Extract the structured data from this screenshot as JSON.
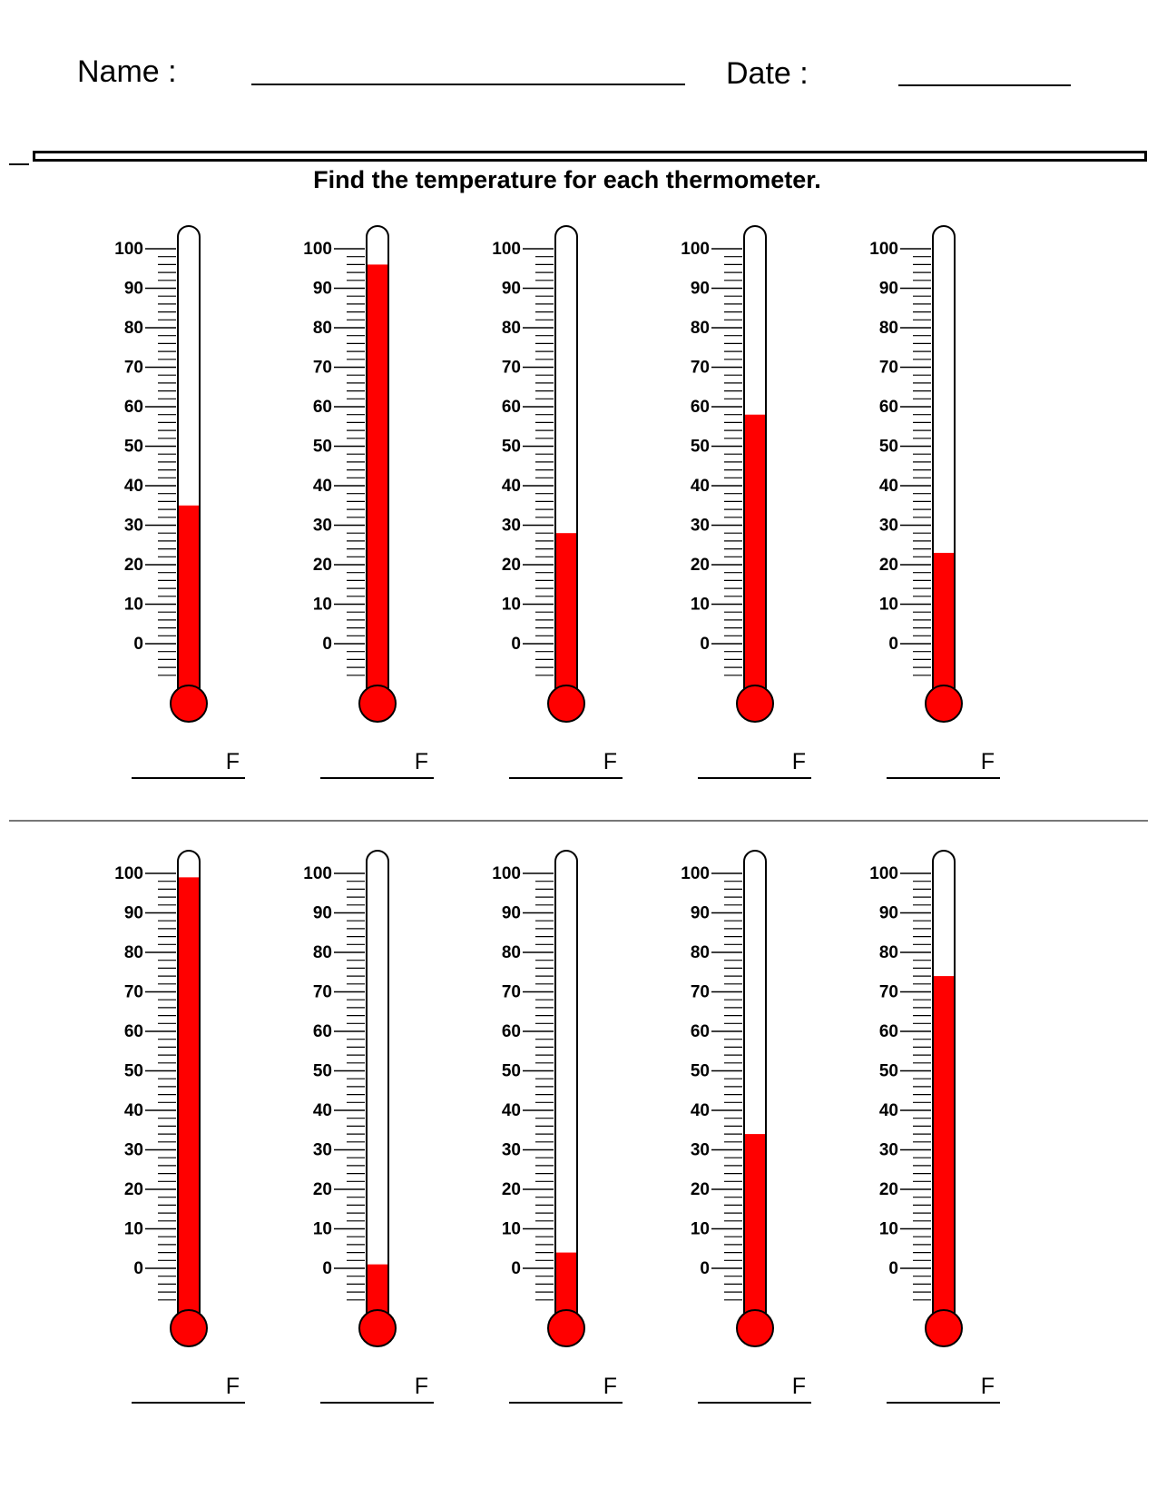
{
  "header": {
    "name_label": "Name :",
    "date_label": "Date :"
  },
  "instructions": "Find the temperature for each thermometer.",
  "scale": {
    "min": 0,
    "max": 100,
    "major_step": 10,
    "minor_step": 2,
    "extends_below_zero": 8,
    "unit_label": "F"
  },
  "colors": {
    "mercury": "#ff0000",
    "outline": "#000000"
  },
  "thermometers": [
    {
      "row": 1,
      "col": 1,
      "value": 35
    },
    {
      "row": 1,
      "col": 2,
      "value": 96
    },
    {
      "row": 1,
      "col": 3,
      "value": 28
    },
    {
      "row": 1,
      "col": 4,
      "value": 58
    },
    {
      "row": 1,
      "col": 5,
      "value": 23
    },
    {
      "row": 2,
      "col": 1,
      "value": 99
    },
    {
      "row": 2,
      "col": 2,
      "value": 1
    },
    {
      "row": 2,
      "col": 3,
      "value": 4
    },
    {
      "row": 2,
      "col": 4,
      "value": 34
    },
    {
      "row": 2,
      "col": 5,
      "value": 74
    }
  ]
}
